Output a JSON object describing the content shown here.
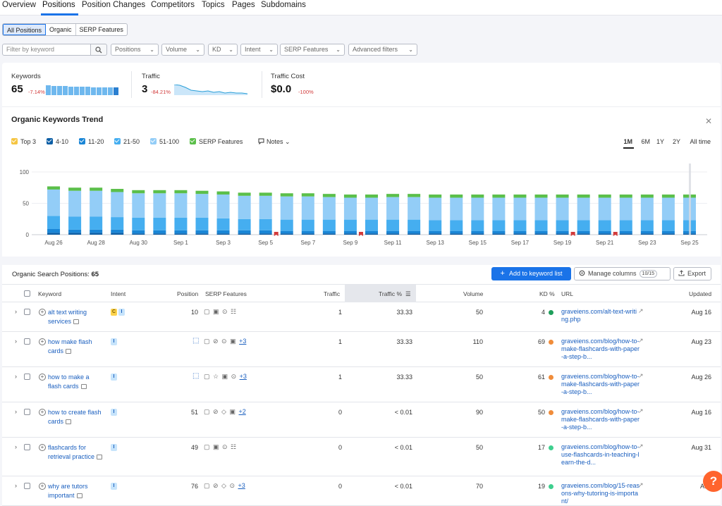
{
  "tabs": [
    {
      "label": "Overview",
      "active": false
    },
    {
      "label": "Positions",
      "active": true
    },
    {
      "label": "Position Changes",
      "active": false
    },
    {
      "label": "Competitors",
      "active": false
    },
    {
      "label": "Topics",
      "active": false
    },
    {
      "label": "Pages",
      "active": false
    },
    {
      "label": "Subdomains",
      "active": false
    }
  ],
  "segment": [
    {
      "label": "All Positions",
      "active": true
    },
    {
      "label": "Organic",
      "active": false
    },
    {
      "label": "SERP Features",
      "active": false
    }
  ],
  "filters": {
    "keyword_placeholder": "Filter by keyword",
    "dropdowns": [
      "Positions",
      "Volume",
      "KD",
      "Intent",
      "SERP Features",
      "Advanced filters"
    ]
  },
  "summary": {
    "keywords": {
      "label": "Keywords",
      "value": "65",
      "change": "-7.14%"
    },
    "traffic": {
      "label": "Traffic",
      "value": "3",
      "change": "-84.21%"
    },
    "traffic_cost": {
      "label": "Traffic Cost",
      "value": "$0.0",
      "change": "-100%"
    }
  },
  "trend": {
    "title": "Organic Keywords Trend",
    "legend": [
      {
        "label": "Top 3",
        "color": "#f5c542"
      },
      {
        "label": "4-10",
        "color": "#0d5fa6"
      },
      {
        "label": "11-20",
        "color": "#1a86d6"
      },
      {
        "label": "21-50",
        "color": "#45aef0"
      },
      {
        "label": "51-100",
        "color": "#93cdf7"
      },
      {
        "label": "SERP Features",
        "color": "#5bbf4a"
      }
    ],
    "notes_label": "Notes",
    "ranges": [
      {
        "label": "1M",
        "active": true
      },
      {
        "label": "6M",
        "active": false
      },
      {
        "label": "1Y",
        "active": false
      },
      {
        "label": "2Y",
        "active": false
      },
      {
        "label": "All time",
        "active": false
      }
    ]
  },
  "chart_data": {
    "type": "bar",
    "stacked": true,
    "ylim": [
      0,
      100
    ],
    "yticks": [
      0,
      50,
      100
    ],
    "xtick_labels": [
      "Aug 26",
      "Aug 28",
      "Aug 30",
      "Sep 1",
      "Sep 3",
      "Sep 5",
      "Sep 7",
      "Sep 9",
      "Sep 11",
      "Sep 13",
      "Sep 15",
      "Sep 17",
      "Sep 19",
      "Sep 21",
      "Sep 23",
      "Sep 25"
    ],
    "categories": [
      "Aug 26",
      "Aug 27",
      "Aug 28",
      "Aug 29",
      "Aug 30",
      "Aug 31",
      "Sep 1",
      "Sep 2",
      "Sep 3",
      "Sep 4",
      "Sep 5",
      "Sep 6",
      "Sep 7",
      "Sep 8",
      "Sep 9",
      "Sep 10",
      "Sep 11",
      "Sep 12",
      "Sep 13",
      "Sep 14",
      "Sep 15",
      "Sep 16",
      "Sep 17",
      "Sep 18",
      "Sep 19",
      "Sep 20",
      "Sep 21",
      "Sep 22",
      "Sep 23",
      "Sep 24",
      "Sep 25"
    ],
    "series": [
      {
        "name": "Top 3",
        "color": "#f5c542",
        "values": [
          0,
          0,
          0,
          0,
          0,
          0,
          0,
          0,
          0,
          0,
          0,
          0,
          0,
          0,
          0,
          0,
          0,
          0,
          0,
          0,
          0,
          0,
          0,
          0,
          0,
          0,
          0,
          0,
          0,
          0,
          0
        ]
      },
      {
        "name": "4-10",
        "color": "#0d5fa6",
        "values": [
          3,
          3,
          3,
          3,
          2,
          2,
          2,
          2,
          2,
          2,
          2,
          2,
          2,
          2,
          2,
          2,
          2,
          2,
          2,
          2,
          2,
          2,
          2,
          2,
          2,
          2,
          2,
          2,
          2,
          2,
          2
        ]
      },
      {
        "name": "11-20",
        "color": "#1a86d6",
        "values": [
          6,
          5,
          5,
          5,
          5,
          5,
          5,
          5,
          5,
          5,
          5,
          4,
          4,
          4,
          4,
          4,
          4,
          4,
          4,
          4,
          4,
          4,
          4,
          4,
          4,
          4,
          4,
          4,
          4,
          4,
          4
        ]
      },
      {
        "name": "21-50",
        "color": "#45aef0",
        "values": [
          21,
          21,
          21,
          20,
          20,
          20,
          20,
          20,
          19,
          18,
          18,
          18,
          18,
          18,
          18,
          18,
          18,
          18,
          17,
          17,
          17,
          17,
          17,
          17,
          17,
          17,
          17,
          17,
          17,
          17,
          17
        ]
      },
      {
        "name": "51-100",
        "color": "#93cdf7",
        "values": [
          42,
          41,
          41,
          40,
          39,
          39,
          39,
          38,
          38,
          37,
          37,
          37,
          37,
          36,
          35,
          35,
          36,
          36,
          36,
          36,
          36,
          36,
          36,
          36,
          36,
          36,
          36,
          36,
          36,
          36,
          36
        ]
      },
      {
        "name": "SERP Features",
        "color": "#5bbf4a",
        "values": [
          5,
          5,
          5,
          5,
          5,
          5,
          5,
          5,
          5,
          5,
          5,
          5,
          5,
          5,
          5,
          5,
          5,
          5,
          5,
          5,
          5,
          5,
          5,
          5,
          5,
          5,
          5,
          5,
          5,
          5,
          5
        ]
      }
    ],
    "note_markers": [
      "Sep 6",
      "Sep 10",
      "Sep 20",
      "Sep 22"
    ]
  },
  "table": {
    "title_label": "Organic Search Positions:",
    "title_count": "65",
    "add_button": "Add to keyword list",
    "manage_columns": "Manage columns",
    "manage_badge": "10/15",
    "export": "Export",
    "headers": {
      "keyword": "Keyword",
      "intent": "Intent",
      "position": "Position",
      "serp": "SERP Features",
      "traffic": "Traffic",
      "traffic_pct": "Traffic %",
      "volume": "Volume",
      "kd": "KD %",
      "url": "URL",
      "updated": "Updated"
    },
    "rows": [
      {
        "keyword": "alt text writing services",
        "intents": [
          "C",
          "I"
        ],
        "position": "10",
        "featured": false,
        "serp_icons": "▢ ▣ ⊙ ☷",
        "serp_more": "",
        "traffic": "1",
        "traffic_pct": "33.33",
        "volume": "50",
        "kd": "4",
        "kd_color": "#1e9e5a",
        "url": "graveiens.com/alt-text-writing.php",
        "updated": "Aug 16"
      },
      {
        "keyword": "how make flash cards",
        "intents": [
          "I"
        ],
        "position": "",
        "featured": true,
        "serp_icons": "▢ ⊘ ⊙ ▣",
        "serp_more": "+3",
        "traffic": "1",
        "traffic_pct": "33.33",
        "volume": "110",
        "kd": "69",
        "kd_color": "#f08c3a",
        "url": "graveiens.com/blog/how-to-make-flashcards-with-paper-a-step-b...",
        "updated": "Aug 23"
      },
      {
        "keyword": "how to make a flash cards",
        "intents": [
          "I"
        ],
        "position": "",
        "featured": true,
        "serp_icons": "▢ ☆ ▣ ⊙",
        "serp_more": "+3",
        "traffic": "1",
        "traffic_pct": "33.33",
        "volume": "50",
        "kd": "61",
        "kd_color": "#f08c3a",
        "url": "graveiens.com/blog/how-to-make-flashcards-with-paper-a-step-b...",
        "updated": "Aug 26"
      },
      {
        "keyword": "how to create flash cards",
        "intents": [
          "I"
        ],
        "position": "51",
        "featured": false,
        "serp_icons": "▢ ⊘ ◇ ▣",
        "serp_more": "+2",
        "traffic": "0",
        "traffic_pct": "< 0.01",
        "volume": "90",
        "kd": "50",
        "kd_color": "#f08c3a",
        "url": "graveiens.com/blog/how-to-make-flashcards-with-paper-a-step-b...",
        "updated": "Aug 16"
      },
      {
        "keyword": "flashcards for retrieval practice",
        "intents": [
          "I"
        ],
        "position": "49",
        "featured": false,
        "serp_icons": "▢ ▣ ⊙ ☷",
        "serp_more": "",
        "traffic": "0",
        "traffic_pct": "< 0.01",
        "volume": "50",
        "kd": "17",
        "kd_color": "#3ecf8e",
        "url": "graveiens.com/blog/how-to-use-flashcards-in-teaching-learn-the-d...",
        "updated": "Aug 31"
      },
      {
        "keyword": "why are tutors important",
        "intents": [
          "I"
        ],
        "position": "76",
        "featured": false,
        "serp_icons": "▢ ⊘ ◇ ⊙",
        "serp_more": "+3",
        "traffic": "0",
        "traffic_pct": "< 0.01",
        "volume": "70",
        "kd": "19",
        "kd_color": "#3ecf8e",
        "url": "graveiens.com/blog/15-reasons-why-tutoring-is-important/",
        "updated": "Aug"
      }
    ]
  },
  "help_label": "?"
}
